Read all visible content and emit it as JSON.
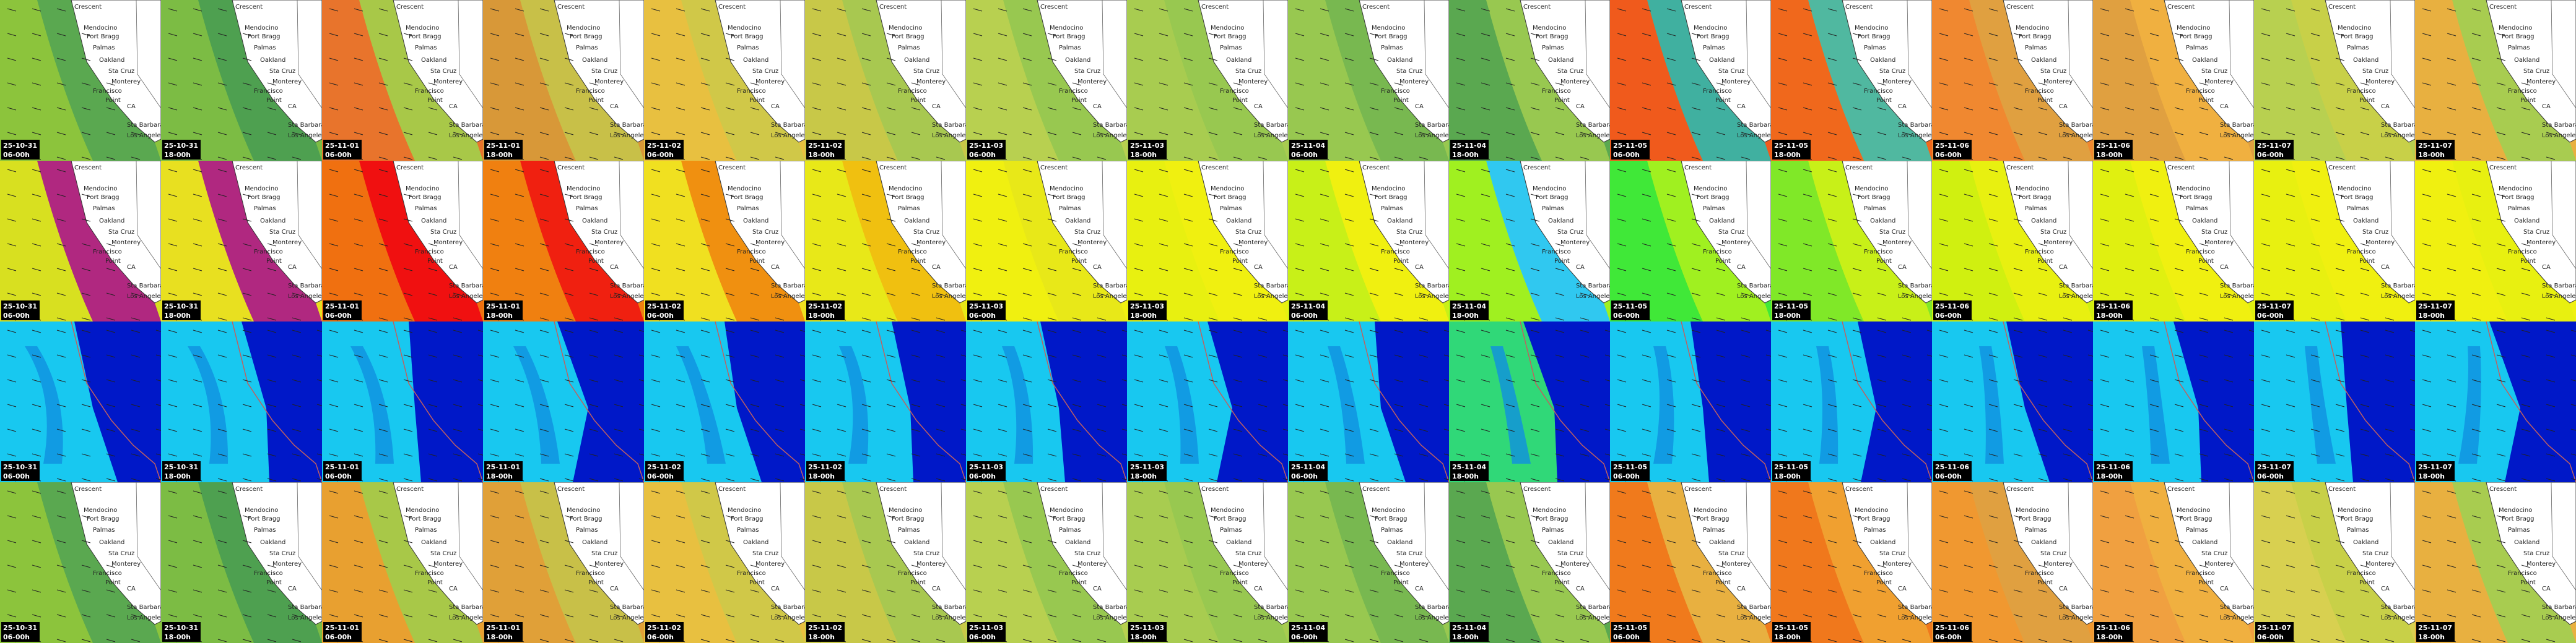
{
  "columns": [
    {
      "date": "25-10-31",
      "time": "06-00h"
    },
    {
      "date": "25-10-31",
      "time": "18-00h"
    },
    {
      "date": "25-11-01",
      "time": "06-00h"
    },
    {
      "date": "25-11-01",
      "time": "18-00h"
    },
    {
      "date": "25-11-02",
      "time": "06-00h"
    },
    {
      "date": "25-11-02",
      "time": "18-00h"
    },
    {
      "date": "25-11-03",
      "time": "06-00h"
    },
    {
      "date": "25-11-03",
      "time": "18-00h"
    },
    {
      "date": "25-11-04",
      "time": "06-00h"
    },
    {
      "date": "25-11-04",
      "time": "18-00h"
    },
    {
      "date": "25-11-05",
      "time": "06-00h"
    },
    {
      "date": "25-11-05",
      "time": "18-00h"
    },
    {
      "date": "25-11-06",
      "time": "06-00h"
    },
    {
      "date": "25-11-06",
      "time": "18-00h"
    },
    {
      "date": "25-11-07",
      "time": "06-00h"
    },
    {
      "date": "25-11-07",
      "time": "18-00h"
    }
  ],
  "cities": [
    "Crescent",
    "Mendocino",
    "Fort Bragg",
    "Palmas",
    "Oakland",
    "Sta Cruz",
    "Monterey",
    "Francisco",
    "Point",
    "CA",
    "Sta Barbara",
    "Los Angeles"
  ]
}
